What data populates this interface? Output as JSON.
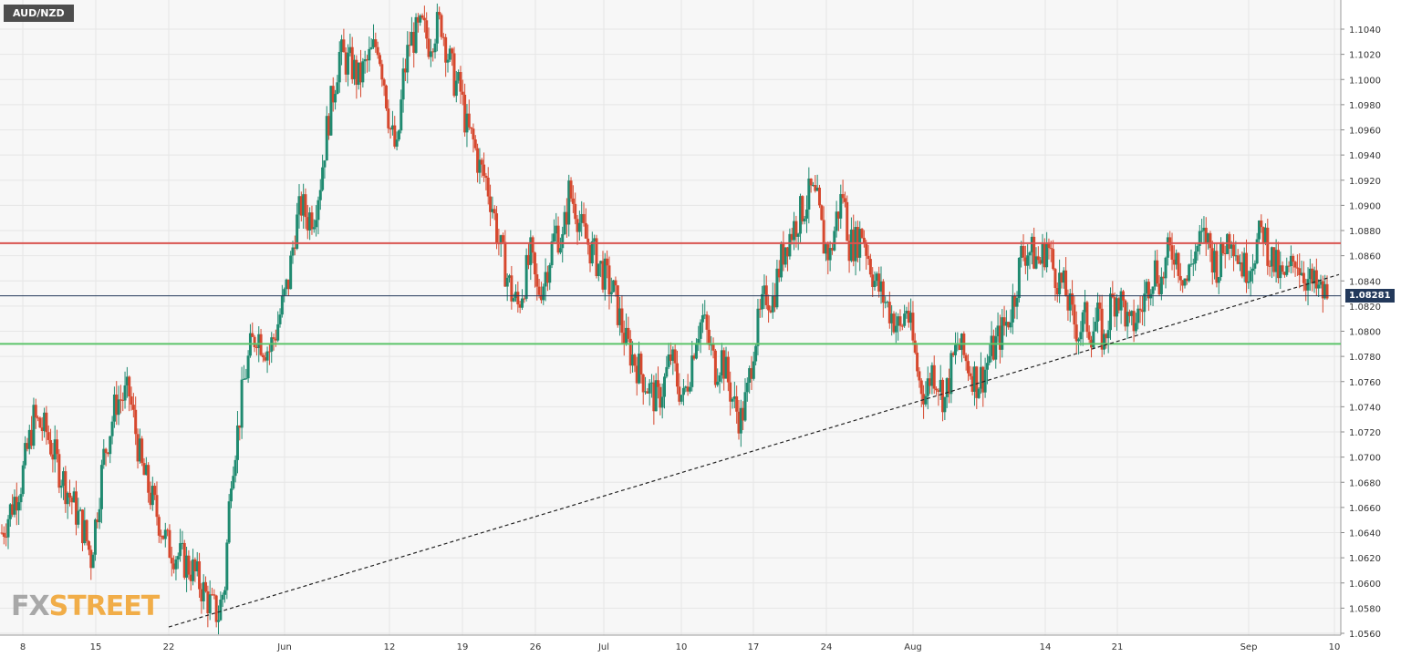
{
  "chart_data": {
    "type": "candlestick",
    "symbol": "AUD/NZD",
    "last_price": "1.08281",
    "ylim": [
      1.056,
      1.06,
      1.106
    ],
    "y_range": [
      1.056,
      1.106
    ],
    "y_ticks": [
      "1.0560",
      "1.0580",
      "1.0600",
      "1.0620",
      "1.0640",
      "1.0660",
      "1.0680",
      "1.0700",
      "1.0720",
      "1.0740",
      "1.0760",
      "1.0780",
      "1.0800",
      "1.0820",
      "1.0840",
      "1.0860",
      "1.0880",
      "1.0900",
      "1.0920",
      "1.0940",
      "1.0960",
      "1.0980",
      "1.1000",
      "1.1020",
      "1.1040"
    ],
    "x_ticks": [
      "8",
      "15",
      "22",
      "Jun",
      "12",
      "19",
      "26",
      "Jul",
      "10",
      "17",
      "24",
      "Aug",
      "14",
      "21",
      "Sep",
      "10"
    ],
    "grid": true,
    "price_path": [
      [
        0,
        1.064
      ],
      [
        3,
        1.068
      ],
      [
        5,
        1.073
      ],
      [
        7,
        1.072
      ],
      [
        9,
        1.069
      ],
      [
        11,
        1.0665
      ],
      [
        13,
        1.064
      ],
      [
        14,
        1.062
      ],
      [
        15,
        1.066
      ],
      [
        16,
        1.07
      ],
      [
        18,
        1.0745
      ],
      [
        20,
        1.075
      ],
      [
        21,
        1.072
      ],
      [
        22,
        1.069
      ],
      [
        24,
        1.066
      ],
      [
        26,
        1.063
      ],
      [
        28,
        1.062
      ],
      [
        30,
        1.061
      ],
      [
        32,
        1.059
      ],
      [
        33,
        1.058
      ],
      [
        34,
        1.0575
      ],
      [
        35,
        1.06
      ],
      [
        36,
        1.069
      ],
      [
        37,
        1.072
      ],
      [
        38,
        1.076
      ],
      [
        39,
        1.0785
      ],
      [
        40,
        1.08
      ],
      [
        41,
        1.079
      ],
      [
        42,
        1.0785
      ],
      [
        43,
        1.08
      ],
      [
        44,
        1.082
      ],
      [
        45,
        1.084
      ],
      [
        46,
        1.088
      ],
      [
        47,
        1.09
      ],
      [
        48,
        1.089
      ],
      [
        49,
        1.0895
      ],
      [
        50,
        1.092
      ],
      [
        51,
        1.096
      ],
      [
        52,
        1.099
      ],
      [
        53,
        1.102
      ],
      [
        54,
        1.1015
      ],
      [
        55,
        1.101
      ],
      [
        56,
        1.1
      ],
      [
        57,
        1.101
      ],
      [
        58,
        1.102
      ],
      [
        59,
        1.103
      ],
      [
        60,
        1.1
      ],
      [
        61,
        1.096
      ],
      [
        62,
        1.094
      ],
      [
        63,
        1.1
      ],
      [
        64,
        1.103
      ],
      [
        65,
        1.1035
      ],
      [
        66,
        1.104
      ],
      [
        67,
        1.103
      ],
      [
        68,
        1.104
      ],
      [
        69,
        1.1045
      ],
      [
        70,
        1.102
      ],
      [
        71,
        1.1
      ],
      [
        72,
        1.099
      ],
      [
        73,
        1.096
      ],
      [
        74,
        1.095
      ],
      [
        75,
        1.093
      ],
      [
        76,
        1.092
      ],
      [
        77,
        1.09
      ],
      [
        78,
        1.087
      ],
      [
        79,
        1.085
      ],
      [
        80,
        1.083
      ],
      [
        81,
        1.082
      ],
      [
        82,
        1.084
      ],
      [
        83,
        1.086
      ],
      [
        84,
        1.083
      ],
      [
        85,
        1.084
      ],
      [
        86,
        1.086
      ],
      [
        87,
        1.088
      ],
      [
        88,
        1.087
      ],
      [
        89,
        1.091
      ],
      [
        90,
        1.09
      ],
      [
        91,
        1.088
      ],
      [
        92,
        1.087
      ],
      [
        93,
        1.086
      ],
      [
        94,
        1.085
      ],
      [
        95,
        1.084
      ],
      [
        96,
        1.083
      ],
      [
        97,
        1.081
      ],
      [
        98,
        1.079
      ],
      [
        99,
        1.078
      ],
      [
        100,
        1.077
      ],
      [
        101,
        1.076
      ],
      [
        102,
        1.075
      ],
      [
        103,
        1.0745
      ],
      [
        104,
        1.076
      ],
      [
        105,
        1.078
      ],
      [
        106,
        1.076
      ],
      [
        107,
        1.0745
      ],
      [
        108,
        1.077
      ],
      [
        109,
        1.08
      ],
      [
        110,
        1.081
      ],
      [
        111,
        1.079
      ],
      [
        112,
        1.077
      ],
      [
        113,
        1.078
      ],
      [
        114,
        1.076
      ],
      [
        115,
        1.074
      ],
      [
        116,
        1.073
      ],
      [
        117,
        1.075
      ],
      [
        118,
        1.079
      ],
      [
        119,
        1.081
      ],
      [
        120,
        1.083
      ],
      [
        121,
        1.0825
      ],
      [
        122,
        1.085
      ],
      [
        123,
        1.087
      ],
      [
        124,
        1.088
      ],
      [
        125,
        1.089
      ],
      [
        126,
        1.09
      ],
      [
        127,
        1.091
      ],
      [
        128,
        1.09
      ],
      [
        129,
        1.087
      ],
      [
        130,
        1.086
      ],
      [
        131,
        1.089
      ],
      [
        132,
        1.091
      ],
      [
        133,
        1.087
      ],
      [
        134,
        1.087
      ],
      [
        135,
        1.088
      ],
      [
        136,
        1.086
      ],
      [
        137,
        1.084
      ],
      [
        138,
        1.083
      ],
      [
        139,
        1.082
      ],
      [
        140,
        1.081
      ],
      [
        141,
        1.08
      ],
      [
        142,
        1.082
      ],
      [
        143,
        1.079
      ],
      [
        144,
        1.076
      ],
      [
        145,
        1.075
      ],
      [
        146,
        1.077
      ],
      [
        147,
        1.076
      ],
      [
        148,
        1.0745
      ],
      [
        149,
        1.077
      ],
      [
        150,
        1.079
      ],
      [
        151,
        1.078
      ],
      [
        152,
        1.077
      ],
      [
        153,
        1.076
      ],
      [
        154,
        1.0765
      ],
      [
        155,
        1.078
      ],
      [
        156,
        1.079
      ],
      [
        157,
        1.08
      ],
      [
        158,
        1.081
      ],
      [
        159,
        1.083
      ],
      [
        160,
        1.086
      ],
      [
        161,
        1.0865
      ],
      [
        162,
        1.086
      ],
      [
        163,
        1.0855
      ],
      [
        164,
        1.087
      ],
      [
        165,
        1.085
      ],
      [
        166,
        1.084
      ],
      [
        167,
        1.083
      ],
      [
        168,
        1.081
      ],
      [
        169,
        1.08
      ],
      [
        170,
        1.081
      ],
      [
        171,
        1.08
      ],
      [
        172,
        1.081
      ],
      [
        173,
        1.079
      ],
      [
        174,
        1.082
      ],
      [
        175,
        1.083
      ],
      [
        176,
        1.082
      ],
      [
        177,
        1.08
      ],
      [
        178,
        1.081
      ],
      [
        179,
        1.082
      ],
      [
        180,
        1.084
      ],
      [
        181,
        1.085
      ],
      [
        182,
        1.084
      ],
      [
        183,
        1.086
      ],
      [
        184,
        1.0865
      ],
      [
        185,
        1.085
      ],
      [
        186,
        1.084
      ],
      [
        187,
        1.086
      ],
      [
        188,
        1.087
      ],
      [
        189,
        1.0875
      ],
      [
        190,
        1.086
      ],
      [
        191,
        1.085
      ],
      [
        192,
        1.087
      ],
      [
        193,
        1.088
      ],
      [
        194,
        1.086
      ],
      [
        195,
        1.085
      ],
      [
        196,
        1.0855
      ],
      [
        197,
        1.087
      ],
      [
        198,
        1.088
      ],
      [
        199,
        1.086
      ],
      [
        200,
        1.085
      ],
      [
        201,
        1.084
      ],
      [
        202,
        1.0845
      ],
      [
        203,
        1.086
      ],
      [
        204,
        1.085
      ],
      [
        205,
        1.084
      ],
      [
        206,
        1.0835
      ],
      [
        207,
        1.083
      ],
      [
        208,
        1.0828
      ]
    ],
    "levels": {
      "resistance": 1.087,
      "support": 1.079,
      "current": 1.08281
    },
    "trendline": {
      "from": [
        185,
        1.0565
      ],
      "to": [
        1468,
        1.0845
      ]
    },
    "colors": {
      "up": "#1f8a70",
      "down": "#d6482e",
      "resistance": "#d9534f",
      "support": "#5cc46a",
      "current": "#23395b",
      "grid": "#e6e6e6",
      "background": "#f7f7f7"
    }
  },
  "watermark": {
    "fx": "FX",
    "street": "STREET"
  }
}
